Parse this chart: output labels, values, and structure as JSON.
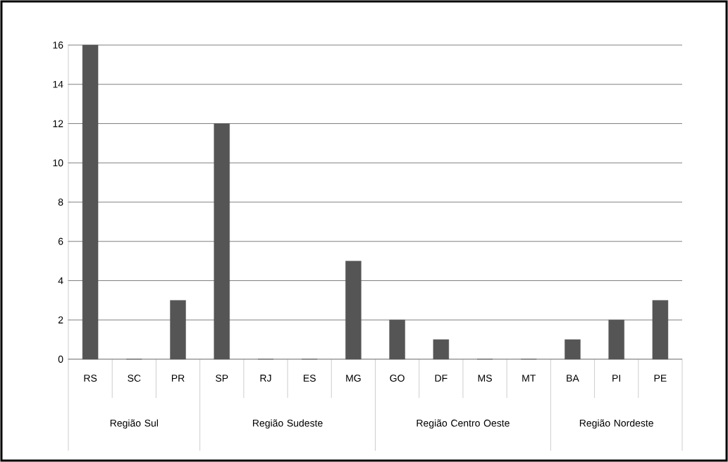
{
  "chart_data": {
    "type": "bar",
    "categories": [
      "RS",
      "SC",
      "PR",
      "SP",
      "RJ",
      "ES",
      "MG",
      "GO",
      "DF",
      "MS",
      "MT",
      "BA",
      "PI",
      "PE"
    ],
    "values": [
      16,
      0,
      3,
      12,
      0,
      0,
      5,
      2,
      1,
      0,
      0,
      1,
      2,
      3
    ],
    "color": "#555555",
    "ylim": [
      0,
      16
    ],
    "yticks": [
      0,
      2,
      4,
      6,
      8,
      10,
      12,
      14,
      16
    ],
    "grid": "y",
    "annotations": [
      "Região Sul",
      "Região Sudeste",
      "Região Centro Oeste",
      "Região Nordeste"
    ]
  }
}
